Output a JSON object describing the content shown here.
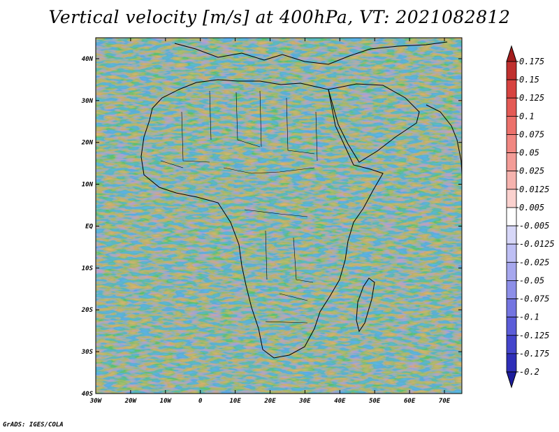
{
  "title": "Vertical velocity [m/s] at 400hPa, VT: 2021082812",
  "credit": "GrADS: IGES/COLA",
  "map": {
    "lat_labels": [
      "40N",
      "30N",
      "20N",
      "10N",
      "EQ",
      "10S",
      "20S",
      "30S",
      "40S"
    ],
    "lat_values": [
      40,
      30,
      20,
      10,
      0,
      -10,
      -20,
      -30,
      -40
    ],
    "lon_labels": [
      "30W",
      "20W",
      "10W",
      "0",
      "10E",
      "20E",
      "30E",
      "40E",
      "50E",
      "60E",
      "70E"
    ],
    "lon_values": [
      -30,
      -20,
      -10,
      0,
      10,
      20,
      30,
      40,
      50,
      60,
      70
    ],
    "lat_range": [
      -40,
      45
    ],
    "lon_range": [
      -30,
      75
    ]
  },
  "colorbar": {
    "labels": [
      "0.175",
      "0.15",
      "0.125",
      "0.1",
      "0.075",
      "0.05",
      "0.025",
      "0.0125",
      "0.005",
      "-0.005",
      "-0.0125",
      "-0.025",
      "-0.05",
      "-0.075",
      "-0.1",
      "-0.125",
      "-0.175",
      "-0.2"
    ],
    "colors": [
      "#a31d1d",
      "#c0302e",
      "#d74340",
      "#e45a55",
      "#ec716b",
      "#f18781",
      "#f39c97",
      "#f6b3ae",
      "#fad1ce",
      "#ffffff",
      "#d7d7f8",
      "#bebff4",
      "#a6a7ee",
      "#8d8fe8",
      "#7475e1",
      "#5c5dd9",
      "#4445cc",
      "#2e2eb8",
      "#1c1c9c"
    ]
  }
}
